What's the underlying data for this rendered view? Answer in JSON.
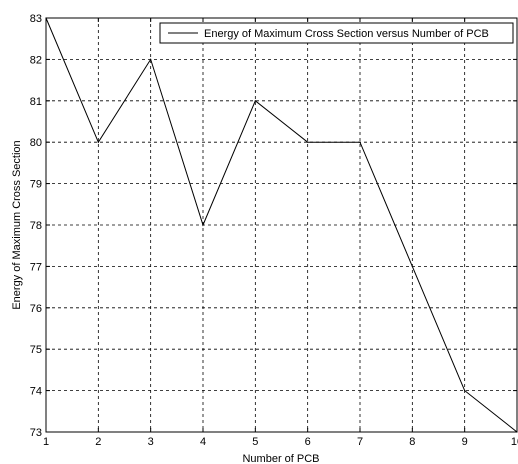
{
  "chart_data": {
    "type": "line",
    "title": "",
    "xlabel": "Number of PCB",
    "ylabel": "Energy of Maximum Cross Section",
    "x": [
      1,
      2,
      3,
      4,
      5,
      6,
      7,
      8,
      9,
      10
    ],
    "series": [
      {
        "name": "Energy of Maximum Cross Section versus Number of PCB",
        "values": [
          83,
          80,
          82,
          78,
          81,
          80,
          80,
          77,
          74,
          73
        ]
      }
    ],
    "xlim": [
      1,
      10
    ],
    "ylim": [
      73,
      83
    ],
    "xticks": [
      "1",
      "2",
      "3",
      "4",
      "5",
      "6",
      "7",
      "8",
      "9",
      "10"
    ],
    "yticks": [
      "73",
      "74",
      "75",
      "76",
      "77",
      "78",
      "79",
      "80",
      "81",
      "82",
      "83"
    ],
    "grid": true,
    "grid_style": "dashed",
    "legend_position": "top-right",
    "colors": {
      "line": "#000000",
      "grid": "#000000",
      "background": "#ffffff"
    }
  }
}
